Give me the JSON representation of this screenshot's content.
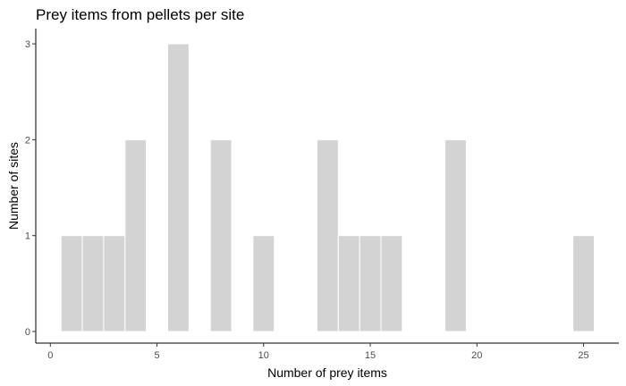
{
  "chart_data": {
    "type": "bar",
    "title": "Prey items from pellets per site",
    "xlabel": "Number of prey items",
    "ylabel": "Number of sites",
    "xlim": [
      -0.5,
      25.5
    ],
    "ylim": [
      0,
      3
    ],
    "x_ticks": [
      0,
      5,
      10,
      15,
      20,
      25
    ],
    "y_ticks": [
      0,
      1,
      2,
      3
    ],
    "x_tick_labels": [
      "0",
      "5",
      "10",
      "15",
      "20",
      "25"
    ],
    "y_tick_labels": [
      "0",
      "1",
      "2",
      "3"
    ],
    "bin_width": 1,
    "bars": [
      {
        "x": 1,
        "count": 1
      },
      {
        "x": 2,
        "count": 1
      },
      {
        "x": 3,
        "count": 1
      },
      {
        "x": 4,
        "count": 2
      },
      {
        "x": 6,
        "count": 3
      },
      {
        "x": 8,
        "count": 2
      },
      {
        "x": 10,
        "count": 1
      },
      {
        "x": 13,
        "count": 2
      },
      {
        "x": 14,
        "count": 1
      },
      {
        "x": 15,
        "count": 1
      },
      {
        "x": 16,
        "count": 1
      },
      {
        "x": 19,
        "count": 2
      },
      {
        "x": 25,
        "count": 1
      }
    ],
    "bar_color": "#d3d3d3",
    "bar_outline": "#ffffff",
    "grid": false,
    "legend": "none"
  }
}
